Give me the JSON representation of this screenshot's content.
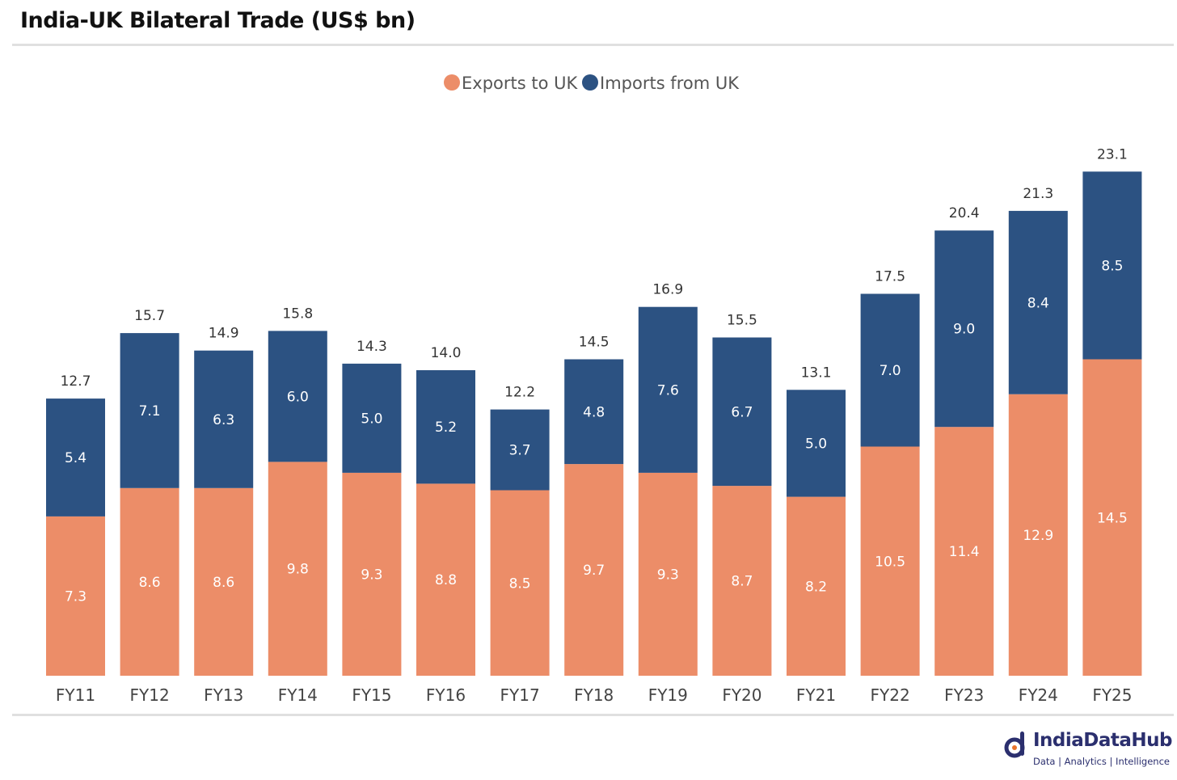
{
  "title": "India-UK Bilateral Trade (US$ bn)",
  "brand": {
    "name": "IndiaDataHub",
    "tagline": "Data | Analytics | Intelligence",
    "color": "#2b2f6e"
  },
  "chart_data": {
    "type": "bar",
    "stacked": true,
    "title": "India-UK Bilateral Trade (US$ bn)",
    "xlabel": "",
    "ylabel": "",
    "ylim": [
      0,
      24
    ],
    "grid": false,
    "legend_position": "top-center",
    "categories": [
      "FY11",
      "FY12",
      "FY13",
      "FY14",
      "FY15",
      "FY16",
      "FY17",
      "FY18",
      "FY19",
      "FY20",
      "FY21",
      "FY22",
      "FY23",
      "FY24",
      "FY25"
    ],
    "series": [
      {
        "name": "Exports to UK",
        "color": "#ec8d68",
        "values": [
          "7.3",
          "8.6",
          "8.6",
          "9.8",
          "9.3",
          "8.8",
          "8.5",
          "9.7",
          "9.3",
          "8.7",
          "8.2",
          "10.5",
          "11.4",
          "12.9",
          "14.5"
        ]
      },
      {
        "name": "Imports from UK",
        "color": "#2c5282",
        "values": [
          "5.4",
          "7.1",
          "6.3",
          "6.0",
          "5.0",
          "5.2",
          "3.7",
          "4.8",
          "7.6",
          "6.7",
          "5.0",
          "7.0",
          "9.0",
          "8.4",
          "8.5"
        ]
      }
    ],
    "totals": [
      "12.7",
      "15.7",
      "14.9",
      "15.8",
      "14.3",
      "14.0",
      "12.2",
      "14.5",
      "16.9",
      "15.5",
      "13.1",
      "17.5",
      "20.4",
      "21.3",
      "23.1"
    ]
  }
}
